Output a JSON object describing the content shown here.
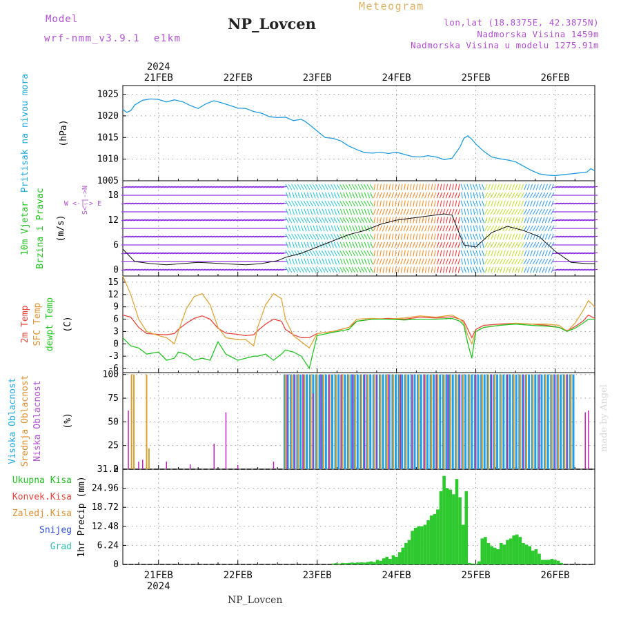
{
  "header": {
    "model_label": "Model",
    "model_name": "wrf-nmm_v3.9.1  e1km",
    "station": "NP_Lovcen",
    "product": "Meteogram",
    "coords": "lon,lat (18.8375E, 42.3875N)",
    "elevation": "Nadmorska Visina 1459m",
    "model_elevation": "Nadmorska Visina u modelu 1275.91m",
    "year_top": "2024",
    "year_bottom": "2024",
    "footer_station": "NP_Lovcen",
    "watermark": "made by Angel"
  },
  "colors": {
    "pressure": "#1e9be0",
    "temp2m": "#e8463c",
    "sfc_temp": "#dfa53a",
    "dewpoint": "#22c422",
    "high_cloud": "#1f9fe8",
    "mid_cloud": "#d8a02c",
    "low_cloud": "#c023b8",
    "precip_total": "#2ec92e",
    "label_cyan": "#22a9e0",
    "label_green": "#22c422",
    "label_purple": "#b050d0",
    "label_red": "#e8463c",
    "label_orange": "#e09030",
    "label_blue": "#3050e0",
    "label_teal": "#30c0b0",
    "product_title": "#e0b060"
  },
  "chart_data": [
    {
      "id": "pressure",
      "type": "line",
      "ylabel_main": "Pritisak na nivou mora",
      "ylabel_unit": "(hPa)",
      "ylim": [
        1005,
        1027
      ],
      "yticks": [
        "1005",
        "1010",
        "1015",
        "1020",
        "1025"
      ],
      "x_axis": {
        "labels": [
          "21FEB",
          "22FEB",
          "23FEB",
          "24FEB",
          "25FEB",
          "26FEB"
        ],
        "range_days": [
          20.55,
          26.5
        ]
      },
      "grid": true,
      "x": [
        20.55,
        20.6,
        20.65,
        20.7,
        20.8,
        20.9,
        21.0,
        21.1,
        21.2,
        21.3,
        21.4,
        21.5,
        21.6,
        21.7,
        21.8,
        21.9,
        22.0,
        22.1,
        22.2,
        22.3,
        22.4,
        22.5,
        22.6,
        22.7,
        22.8,
        22.85,
        22.9,
        23.0,
        23.1,
        23.2,
        23.3,
        23.4,
        23.5,
        23.6,
        23.7,
        23.8,
        23.9,
        24.0,
        24.1,
        24.2,
        24.3,
        24.4,
        24.5,
        24.6,
        24.7,
        24.8,
        24.85,
        24.9,
        24.95,
        25.0,
        25.1,
        25.2,
        25.3,
        25.4,
        25.5,
        25.6,
        25.7,
        25.8,
        25.9,
        26.0,
        26.1,
        26.2,
        26.3,
        26.4,
        26.45,
        26.5
      ],
      "values": [
        1021.5,
        1020.8,
        1021.2,
        1022.5,
        1023.6,
        1023.9,
        1023.8,
        1023.2,
        1023.7,
        1023.3,
        1022.4,
        1021.7,
        1022.8,
        1023.5,
        1023.0,
        1022.4,
        1021.8,
        1021.7,
        1021.0,
        1020.6,
        1019.8,
        1019.6,
        1019.7,
        1018.9,
        1019.2,
        1018.7,
        1018.0,
        1016.5,
        1015.0,
        1014.8,
        1014.2,
        1013.0,
        1012.2,
        1011.5,
        1011.4,
        1011.6,
        1011.3,
        1011.6,
        1011.1,
        1010.6,
        1010.5,
        1010.8,
        1010.5,
        1009.9,
        1010.2,
        1012.8,
        1014.8,
        1015.4,
        1014.6,
        1013.5,
        1011.8,
        1010.5,
        1010.1,
        1009.8,
        1009.4,
        1008.4,
        1007.4,
        1006.6,
        1006.3,
        1006.2,
        1006.4,
        1006.6,
        1006.8,
        1007.0,
        1007.8,
        1007.3
      ]
    },
    {
      "id": "wind",
      "type": "line",
      "ylabel_main": "10m Vjetar",
      "ylabel_sub": "Brzina i Pravac",
      "ylabel_unit": "(m/s)",
      "compass": "W <-|-> E",
      "compass_ns": "S<-|->N",
      "ylim": [
        -1.5,
        21.5
      ],
      "yticks": [
        "0",
        "6",
        "12",
        "18"
      ],
      "grid": true,
      "x": [
        20.55,
        20.7,
        20.9,
        21.1,
        21.3,
        21.5,
        21.7,
        21.9,
        22.1,
        22.3,
        22.5,
        22.6,
        22.8,
        23.0,
        23.2,
        23.4,
        23.6,
        23.8,
        24.0,
        24.2,
        24.4,
        24.6,
        24.7,
        24.85,
        25.0,
        25.2,
        25.4,
        25.6,
        25.8,
        26.0,
        26.2,
        26.4,
        26.5
      ],
      "values": [
        5.0,
        2.0,
        1.5,
        1.2,
        1.5,
        1.8,
        1.6,
        1.4,
        1.2,
        1.5,
        2.2,
        3.0,
        4.0,
        5.5,
        7.0,
        8.5,
        9.5,
        11.0,
        12.0,
        12.5,
        13.0,
        13.5,
        13.2,
        6.0,
        5.5,
        9.0,
        10.5,
        9.5,
        8.0,
        4.5,
        1.8,
        1.5,
        1.5
      ]
    },
    {
      "id": "temperature",
      "type": "line",
      "ylabel_lines": [
        "2m Temp",
        "SFC Temp",
        "dewpt Temp"
      ],
      "ylabel_unit": "(C)",
      "ylim": [
        -7,
        16.5
      ],
      "yticks": [
        "-6",
        "-3",
        "0",
        "3",
        "6",
        "9",
        "12",
        "15"
      ],
      "grid": true,
      "x": [
        20.55,
        20.65,
        20.75,
        20.85,
        21.0,
        21.1,
        21.2,
        21.25,
        21.35,
        21.45,
        21.55,
        21.65,
        21.75,
        21.85,
        22.0,
        22.1,
        22.2,
        22.25,
        22.35,
        22.45,
        22.55,
        22.6,
        22.7,
        22.8,
        22.9,
        23.0,
        23.2,
        23.4,
        23.5,
        23.7,
        23.9,
        24.1,
        24.3,
        24.5,
        24.7,
        24.8,
        24.85,
        24.9,
        24.95,
        25.0,
        25.1,
        25.3,
        25.5,
        25.7,
        25.9,
        26.05,
        26.15,
        26.25,
        26.35,
        26.42,
        26.5
      ],
      "series": [
        {
          "name": "2m Temp",
          "values": [
            7.0,
            6.5,
            4.0,
            2.5,
            2.3,
            2.2,
            2.5,
            3.5,
            5.0,
            6.2,
            6.8,
            6.0,
            3.8,
            2.6,
            2.3,
            2.0,
            2.2,
            3.2,
            4.8,
            6.0,
            5.5,
            3.5,
            2.2,
            1.5,
            1.5,
            2.5,
            3.0,
            4.0,
            5.5,
            6.0,
            6.2,
            6.0,
            6.5,
            6.3,
            6.6,
            6.0,
            5.5,
            3.5,
            1.5,
            3.5,
            4.5,
            4.8,
            5.0,
            4.8,
            4.5,
            4.0,
            3.2,
            4.2,
            5.5,
            7.0,
            6.2
          ]
        },
        {
          "name": "SFC Temp",
          "values": [
            16.5,
            12.0,
            6.0,
            3.0,
            2.0,
            1.5,
            0.0,
            3.0,
            8.5,
            11.5,
            12.2,
            9.5,
            4.0,
            1.5,
            1.0,
            1.0,
            -0.5,
            4.0,
            9.5,
            12.2,
            11.0,
            6.0,
            2.0,
            0.5,
            -1.0,
            2.5,
            3.0,
            4.0,
            6.0,
            6.2,
            6.0,
            6.3,
            6.8,
            6.5,
            7.0,
            6.0,
            5.0,
            2.0,
            0.0,
            3.0,
            4.0,
            4.5,
            5.0,
            4.8,
            4.8,
            4.5,
            3.0,
            5.0,
            8.0,
            10.5,
            9.0
          ]
        },
        {
          "name": "dewpt Temp",
          "values": [
            1.5,
            -0.5,
            -1.0,
            -2.5,
            -2.0,
            -4.0,
            -3.5,
            -2.0,
            -2.5,
            -4.0,
            -3.5,
            -4.0,
            0.5,
            -2.5,
            -4.0,
            -3.5,
            -3.0,
            -3.0,
            -2.5,
            -4.0,
            -2.5,
            -1.5,
            -2.0,
            -3.0,
            -6.0,
            2.0,
            2.8,
            3.5,
            5.5,
            6.0,
            6.0,
            5.8,
            6.0,
            6.0,
            6.2,
            5.5,
            4.5,
            0.0,
            -3.5,
            3.0,
            4.0,
            4.5,
            4.8,
            4.5,
            4.3,
            4.0,
            3.0,
            3.8,
            5.0,
            6.0,
            6.0
          ]
        }
      ]
    },
    {
      "id": "clouds",
      "type": "bar",
      "ylabel_lines": [
        "Visoka Oblacnost",
        "Srednja Oblacnost",
        "Niska Oblacnost"
      ],
      "ylabel_unit": "(%)",
      "ylim": [
        0,
        102
      ],
      "yticks": [
        "0",
        "25",
        "50",
        "75",
        "100"
      ],
      "grid": true,
      "overcast_window_days": [
        22.58,
        26.25
      ],
      "series": [
        {
          "name": "Visoka Oblacnost",
          "x": [
            20.6,
            20.9,
            22.59,
            22.63,
            22.67,
            22.71,
            22.75,
            22.79,
            22.83,
            22.87,
            22.91,
            22.95,
            22.99,
            23.03,
            23.07,
            23.11,
            23.15,
            23.19,
            23.23,
            23.27,
            23.31,
            23.35,
            23.39,
            23.43,
            23.47,
            23.51,
            23.55,
            23.59,
            23.63,
            23.67,
            23.71,
            23.75,
            23.79,
            23.83,
            23.87,
            23.91,
            23.95,
            23.99,
            24.03,
            24.07,
            24.11,
            24.15,
            24.19,
            24.23,
            24.27,
            24.31,
            24.35,
            24.39,
            24.43,
            24.47,
            24.51,
            24.55,
            24.59,
            24.63,
            24.67,
            24.71,
            24.75,
            24.79,
            24.83,
            24.87,
            24.91,
            24.95,
            24.99,
            25.03,
            25.07,
            25.11,
            25.15,
            25.19,
            25.23,
            25.27,
            25.31,
            25.35,
            25.39,
            25.43,
            25.47,
            25.51,
            25.55,
            25.59,
            25.63,
            25.67,
            25.71,
            25.75,
            25.79,
            25.83,
            25.87,
            25.91,
            25.95,
            25.99,
            26.03,
            26.07,
            26.11,
            26.15,
            26.19,
            26.23
          ],
          "values": [
            0,
            0,
            100,
            100,
            100,
            100,
            100,
            100,
            100,
            100,
            100,
            100,
            100,
            100,
            100,
            100,
            100,
            100,
            100,
            100,
            100,
            100,
            100,
            100,
            100,
            100,
            100,
            100,
            100,
            100,
            100,
            100,
            100,
            100,
            100,
            100,
            100,
            100,
            100,
            100,
            100,
            100,
            100,
            100,
            100,
            100,
            100,
            100,
            100,
            100,
            100,
            100,
            100,
            100,
            100,
            100,
            100,
            100,
            100,
            100,
            100,
            100,
            100,
            100,
            100,
            100,
            100,
            100,
            100,
            100,
            100,
            100,
            100,
            100,
            100,
            100,
            100,
            100,
            100,
            100,
            100,
            100,
            100,
            100,
            100,
            100,
            100,
            100,
            100,
            100,
            100,
            100,
            100,
            100
          ]
        },
        {
          "name": "Srednja Oblacnost",
          "x": [
            20.66,
            20.69,
            20.85,
            20.88,
            22.6,
            22.68,
            22.76,
            22.84,
            22.92,
            23.0,
            23.08,
            23.16,
            23.24,
            23.32,
            23.4,
            23.48,
            23.56,
            23.64,
            23.72,
            23.8,
            23.88,
            23.96,
            24.04,
            24.12,
            24.2,
            24.28,
            24.36,
            24.44,
            24.52,
            24.6,
            24.68,
            24.76,
            24.84,
            24.92,
            25.0,
            25.08,
            25.16,
            25.24,
            25.32,
            25.4,
            25.48,
            25.56,
            25.64,
            25.72,
            25.8,
            25.88,
            25.96,
            26.04,
            26.12,
            26.2
          ],
          "values": [
            100,
            100,
            100,
            22,
            100,
            100,
            100,
            100,
            100,
            100,
            100,
            100,
            100,
            100,
            100,
            100,
            100,
            100,
            100,
            100,
            100,
            100,
            100,
            100,
            100,
            100,
            100,
            100,
            100,
            100,
            100,
            100,
            100,
            100,
            100,
            100,
            100,
            100,
            100,
            100,
            100,
            100,
            100,
            100,
            100,
            100,
            100,
            100,
            100,
            100
          ]
        },
        {
          "name": "Niska Oblacnost",
          "x": [
            20.62,
            20.75,
            20.8,
            21.1,
            21.4,
            21.7,
            21.85,
            22.0,
            22.45,
            22.62,
            22.72,
            22.82,
            22.95,
            23.05,
            23.15,
            23.3,
            23.45,
            23.6,
            23.75,
            23.9,
            24.05,
            24.2,
            24.35,
            24.5,
            24.65,
            24.8,
            25.0,
            25.2,
            25.4,
            25.6,
            25.8,
            26.0,
            26.15,
            26.38,
            26.42
          ],
          "values": [
            62,
            8,
            10,
            8,
            5,
            27,
            60,
            4,
            8,
            100,
            100,
            100,
            80,
            100,
            100,
            100,
            100,
            100,
            100,
            100,
            100,
            100,
            100,
            100,
            100,
            100,
            100,
            100,
            100,
            100,
            100,
            100,
            100,
            60,
            62
          ]
        }
      ]
    },
    {
      "id": "precip",
      "type": "bar",
      "ylabel_lines": [
        "Ukupna Kisa",
        "Konvek.Kisa",
        "Zaledj.Kisa",
        "Snijeg",
        "Grad"
      ],
      "ylabel_unit": "1hr Precip (mm)",
      "ylim": [
        0,
        31.2
      ],
      "yticks": [
        "0",
        "6.24",
        "12.48",
        "18.72",
        "24.96",
        "31.2"
      ],
      "x_axis": {
        "labels": [
          "21FEB",
          "22FEB",
          "23FEB",
          "24FEB",
          "25FEB",
          "26FEB"
        ],
        "range_days": [
          20.55,
          26.5
        ]
      },
      "grid": true,
      "series": [
        {
          "name": "Ukupna Kisa",
          "x": [
            23.2,
            23.24,
            23.28,
            23.32,
            23.36,
            23.4,
            23.44,
            23.48,
            23.52,
            23.56,
            23.6,
            23.64,
            23.68,
            23.72,
            23.76,
            23.8,
            23.84,
            23.88,
            23.92,
            23.96,
            24.0,
            24.04,
            24.08,
            24.12,
            24.16,
            24.2,
            24.24,
            24.28,
            24.32,
            24.36,
            24.4,
            24.44,
            24.48,
            24.52,
            24.56,
            24.6,
            24.64,
            24.68,
            24.72,
            24.76,
            24.8,
            24.84,
            24.88,
            24.92,
            24.96,
            25.0,
            25.04,
            25.08,
            25.12,
            25.16,
            25.2,
            25.24,
            25.28,
            25.32,
            25.36,
            25.4,
            25.44,
            25.48,
            25.52,
            25.56,
            25.6,
            25.64,
            25.68,
            25.72,
            25.76,
            25.8,
            25.84,
            25.88,
            25.92,
            25.96,
            26.0,
            26.04,
            26.08
          ],
          "values": [
            0.3,
            0.4,
            0.3,
            0.5,
            0.4,
            0.5,
            0.6,
            0.5,
            0.6,
            0.7,
            0.6,
            0.8,
            1.0,
            0.8,
            1.5,
            1.2,
            2.0,
            2.5,
            1.8,
            3.0,
            2.5,
            4.0,
            5.5,
            7.0,
            8.0,
            11.0,
            12.0,
            12.5,
            12.5,
            13.0,
            14.5,
            16.0,
            16.5,
            18.0,
            24.0,
            29.0,
            25.0,
            24.5,
            23.0,
            28.0,
            22.0,
            13.0,
            24.0,
            0.5,
            0.3,
            0.2,
            1.0,
            8.5,
            9.0,
            7.0,
            6.0,
            5.5,
            5.0,
            7.0,
            6.5,
            8.0,
            8.5,
            9.5,
            9.8,
            9.0,
            7.0,
            6.5,
            6.0,
            4.5,
            5.0,
            3.5,
            1.5,
            1.5,
            1.5,
            1.8,
            1.5,
            1.2,
            0.5
          ]
        }
      ]
    }
  ]
}
